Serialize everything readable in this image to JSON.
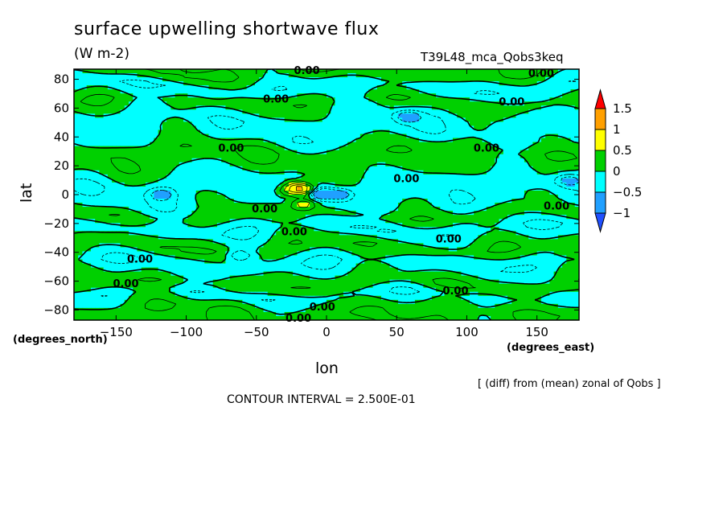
{
  "header": {
    "title": "surface upwelling shortwave flux",
    "units": "(W m-2)",
    "run_name": "T39L48_mca_Qobs3keq"
  },
  "footer": {
    "xunit_label": "(degrees_east)",
    "yunit_label": "(degrees_north)",
    "note": "[ (diff) from (mean) zonal of Qobs ]",
    "contour_interval": "CONTOUR INTERVAL = 2.500E-01"
  },
  "chart_data": {
    "type": "heatmap",
    "title": "surface upwelling shortwave flux",
    "units": "(W m-2)",
    "xlabel": "lon",
    "ylabel": "lat",
    "xlim": [
      -180,
      180
    ],
    "ylim": [
      -87,
      87
    ],
    "xticks": [
      -150,
      -100,
      -50,
      0,
      50,
      100,
      150
    ],
    "yticks": [
      80,
      60,
      40,
      20,
      0,
      -20,
      -40,
      -60,
      -80
    ],
    "contour_interval": 0.25,
    "contour_labels": [
      {
        "text": "0.00",
        "lon": -14,
        "lat": 86
      },
      {
        "text": "0.00",
        "lon": 153,
        "lat": 84
      },
      {
        "text": "0.00",
        "lon": -36,
        "lat": 66
      },
      {
        "text": "0.00",
        "lon": 132,
        "lat": 64
      },
      {
        "text": "0.00",
        "lon": -68,
        "lat": 32
      },
      {
        "text": "0.00",
        "lon": 114,
        "lat": 32
      },
      {
        "text": "0.00",
        "lon": 57,
        "lat": 11
      },
      {
        "text": "0.00",
        "lon": 164,
        "lat": -8
      },
      {
        "text": "0.00",
        "lon": -44,
        "lat": -10
      },
      {
        "text": "0.00",
        "lon": -23,
        "lat": -26
      },
      {
        "text": "0.00",
        "lon": 87,
        "lat": -31
      },
      {
        "text": "0.00",
        "lon": -133,
        "lat": -45
      },
      {
        "text": "0.00",
        "lon": -143,
        "lat": -62
      },
      {
        "text": "0.00",
        "lon": 92,
        "lat": -67
      },
      {
        "text": "0.00",
        "lon": -3,
        "lat": -78
      },
      {
        "text": "0.00",
        "lon": -20,
        "lat": -86
      }
    ],
    "colorbar": {
      "levels": [
        -1,
        -0.5,
        0,
        0.5,
        1,
        1.5
      ],
      "tick_labels": [
        "1.5",
        "1",
        "0.5",
        "0",
        "-0.5",
        "-1"
      ],
      "colors": {
        "above_1.5": "#ff0000",
        "1_to_1.5": "#ffa000",
        "0.5_to_1": "#ffff00",
        "0_to_0.5": "#00d000",
        "-0.5_to_0": "#00ffff",
        "-1_to_-0.5": "#20a0ff",
        "below_-1": "#2050ff"
      }
    },
    "bands": [
      {
        "lat": 84,
        "value": 0.2
      },
      {
        "lat": 75,
        "value": -0.2
      },
      {
        "lat": 64,
        "value": 0.15
      },
      {
        "lat": 52,
        "value": -0.15
      },
      {
        "lat": 40,
        "value": -0.1
      },
      {
        "lat": 30,
        "value": 0.2
      },
      {
        "lat": 20,
        "value": 0.1
      },
      {
        "lat": 8,
        "value": -0.15
      },
      {
        "lat": -6,
        "value": -0.1
      },
      {
        "lat": -14,
        "value": 0.15
      },
      {
        "lat": -24,
        "value": -0.2
      },
      {
        "lat": -36,
        "value": 0.2
      },
      {
        "lat": -48,
        "value": -0.2
      },
      {
        "lat": -62,
        "value": 0.2
      },
      {
        "lat": -70,
        "value": -0.15
      },
      {
        "lat": -80,
        "value": 0.2
      }
    ],
    "anomalies": [
      {
        "lon": -22,
        "lat": 6,
        "value": 0.75
      },
      {
        "lon": -14,
        "lat": 3,
        "value": 1.1
      },
      {
        "lon": -28,
        "lat": 2,
        "value": 0.6
      },
      {
        "lon": -16,
        "lat": -6,
        "value": 0.8
      },
      {
        "lon": -5,
        "lat": 1,
        "value": -1.2
      },
      {
        "lon": 10,
        "lat": 0,
        "value": -0.8
      },
      {
        "lon": 58,
        "lat": 54,
        "value": -0.7
      },
      {
        "lon": -62,
        "lat": -42,
        "value": -0.6
      },
      {
        "lon": -118,
        "lat": 0,
        "value": -0.6
      },
      {
        "lon": 172,
        "lat": 10,
        "value": -0.6
      }
    ],
    "grid": false,
    "legend": "right"
  }
}
